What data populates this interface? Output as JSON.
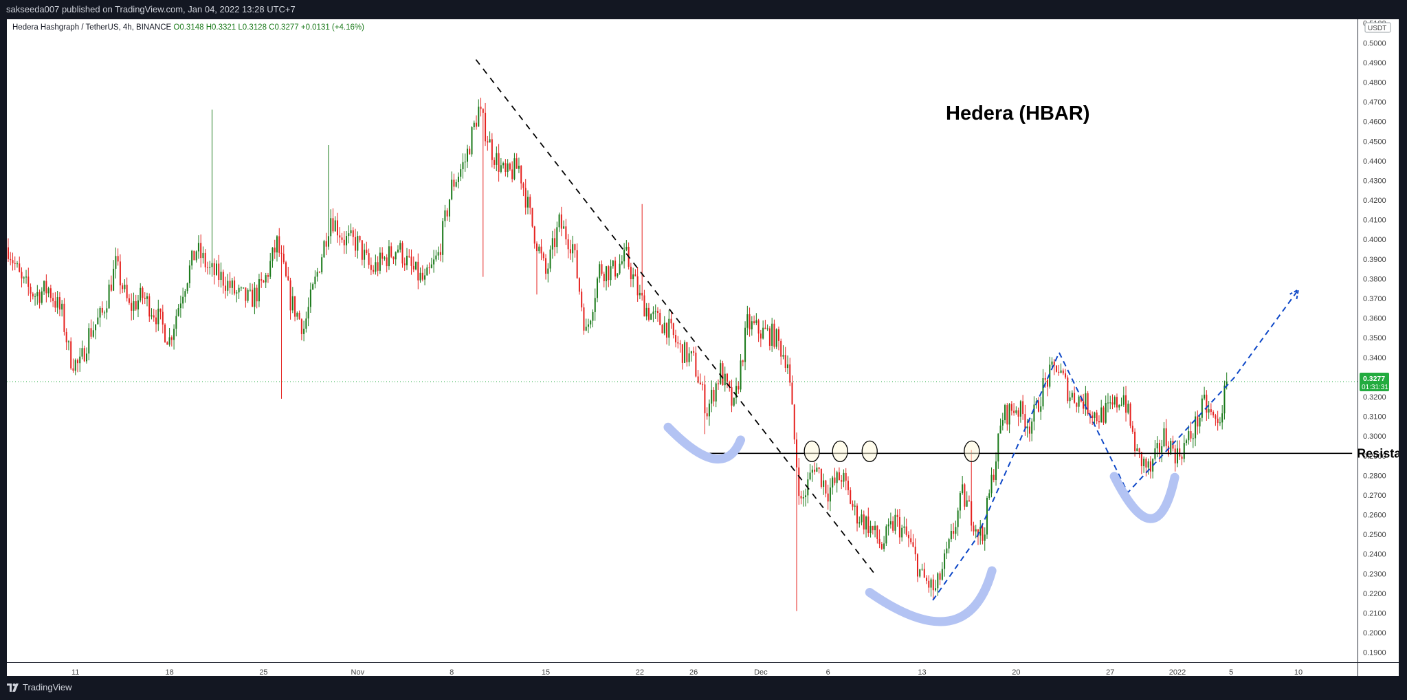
{
  "publish_line": "sakseeda007 published on TradingView.com, Jan 04, 2022 13:28 UTC+7",
  "footer": {
    "brand": "TradingView",
    "logo_icon": "tradingview-logo-icon"
  },
  "colors": {
    "up": "#1b7a1b",
    "down": "#e5221f",
    "annotation": "#b3c3f3",
    "trend_dashed": "#0d47c7",
    "price_tag": "#22ab3f",
    "price_line": "#22ab3f"
  },
  "chart_data": {
    "type": "candlestick",
    "symbol_header": {
      "name": "Hedera Hashgraph / TetherUS, 4h, BINANCE",
      "open": "O0.3148",
      "high": "H0.3321",
      "low": "L0.3128",
      "close": "C0.3277",
      "change": "+0.0131 (+4.16%)"
    },
    "title": "Hedera (HBAR)",
    "annotation_label": "Resista",
    "y_axis": {
      "unit": "USDT",
      "ticks": [
        "0.5100",
        "0.5000",
        "0.4900",
        "0.4800",
        "0.4700",
        "0.4600",
        "0.4500",
        "0.4400",
        "0.4300",
        "0.4200",
        "0.4100",
        "0.4000",
        "0.3900",
        "0.3800",
        "0.3700",
        "0.3600",
        "0.3500",
        "0.3400",
        "0.3300",
        "0.3200",
        "0.3100",
        "0.3000",
        "0.2900",
        "0.2800",
        "0.2700",
        "0.2600",
        "0.2500",
        "0.2400",
        "0.2300",
        "0.2200",
        "0.2100",
        "0.2000",
        "0.1900"
      ],
      "range": [
        0.185,
        0.512
      ]
    },
    "x_axis": {
      "ticks": [
        {
          "label": "11",
          "day": 11
        },
        {
          "label": "18",
          "day": 18
        },
        {
          "label": "25",
          "day": 25
        },
        {
          "label": "Nov",
          "day": 32
        },
        {
          "label": "8",
          "day": 39
        },
        {
          "label": "15",
          "day": 46
        },
        {
          "label": "22",
          "day": 53
        },
        {
          "label": "26",
          "day": 57
        },
        {
          "label": "Dec",
          "day": 62
        },
        {
          "label": "6",
          "day": 67
        },
        {
          "label": "13",
          "day": 74
        },
        {
          "label": "20",
          "day": 81
        },
        {
          "label": "27",
          "day": 88
        },
        {
          "label": "2022",
          "day": 93
        },
        {
          "label": "5",
          "day": 97
        },
        {
          "label": "10",
          "day": 102
        }
      ],
      "domain": [
        5.9,
        106.4
      ]
    },
    "last_price": "0.3277",
    "countdown": "01:31:31",
    "path": [
      [
        6,
        0.396
      ],
      [
        7,
        0.378
      ],
      [
        8,
        0.372
      ],
      [
        9,
        0.375
      ],
      [
        10,
        0.362
      ],
      [
        10.6,
        0.34
      ],
      [
        11.3,
        0.335
      ],
      [
        12,
        0.352
      ],
      [
        13,
        0.362
      ],
      [
        14,
        0.387
      ],
      [
        15,
        0.365
      ],
      [
        16,
        0.371
      ],
      [
        17,
        0.362
      ],
      [
        18,
        0.349
      ],
      [
        19,
        0.375
      ],
      [
        20,
        0.395
      ],
      [
        21,
        0.384
      ],
      [
        22,
        0.38
      ],
      [
        23,
        0.372
      ],
      [
        24,
        0.369
      ],
      [
        25,
        0.377
      ],
      [
        26,
        0.398
      ],
      [
        27,
        0.369
      ],
      [
        28,
        0.355
      ],
      [
        29,
        0.383
      ],
      [
        30,
        0.412
      ],
      [
        31,
        0.4
      ],
      [
        32,
        0.398
      ],
      [
        33,
        0.384
      ],
      [
        34,
        0.39
      ],
      [
        35,
        0.396
      ],
      [
        36,
        0.385
      ],
      [
        37,
        0.378
      ],
      [
        38,
        0.392
      ],
      [
        39,
        0.427
      ],
      [
        40,
        0.44
      ],
      [
        41,
        0.466
      ],
      [
        42,
        0.445
      ],
      [
        43,
        0.432
      ],
      [
        44,
        0.437
      ],
      [
        45,
        0.407
      ],
      [
        46,
        0.382
      ],
      [
        47,
        0.408
      ],
      [
        48,
        0.397
      ],
      [
        49,
        0.352
      ],
      [
        50,
        0.385
      ],
      [
        51,
        0.384
      ],
      [
        52,
        0.391
      ],
      [
        53,
        0.37
      ],
      [
        54,
        0.36
      ],
      [
        55,
        0.356
      ],
      [
        56,
        0.344
      ],
      [
        57,
        0.338
      ],
      [
        58,
        0.313
      ],
      [
        59,
        0.333
      ],
      [
        60,
        0.314
      ],
      [
        61,
        0.357
      ],
      [
        62,
        0.353
      ],
      [
        63,
        0.351
      ],
      [
        64,
        0.338
      ],
      [
        64.6,
        0.29
      ],
      [
        65,
        0.265
      ],
      [
        66,
        0.286
      ],
      [
        67,
        0.272
      ],
      [
        68,
        0.28
      ],
      [
        69,
        0.261
      ],
      [
        70,
        0.255
      ],
      [
        71,
        0.244
      ],
      [
        72,
        0.257
      ],
      [
        73,
        0.247
      ],
      [
        74,
        0.228
      ],
      [
        75,
        0.221
      ],
      [
        76,
        0.243
      ],
      [
        77,
        0.27
      ],
      [
        78,
        0.255
      ],
      [
        78.5,
        0.248
      ],
      [
        79,
        0.27
      ],
      [
        80,
        0.31
      ],
      [
        81,
        0.315
      ],
      [
        82,
        0.306
      ],
      [
        82.5,
        0.313
      ],
      [
        83,
        0.325
      ],
      [
        84,
        0.336
      ],
      [
        85,
        0.321
      ],
      [
        86,
        0.318
      ],
      [
        87,
        0.31
      ],
      [
        88,
        0.313
      ],
      [
        89,
        0.321
      ],
      [
        90,
        0.29
      ],
      [
        91,
        0.282
      ],
      [
        92,
        0.3
      ],
      [
        93,
        0.29
      ],
      [
        94,
        0.3
      ],
      [
        95,
        0.316
      ],
      [
        96,
        0.305
      ],
      [
        96.7,
        0.327
      ]
    ],
    "horizontal_lines": [
      {
        "kind": "resistance",
        "y": 0.2912,
        "x_from": 57.5,
        "x_to": 106.0
      },
      {
        "kind": "last_price",
        "y": 0.3277
      }
    ],
    "downtrend_line": {
      "from": [
        40.8,
        0.4915
      ],
      "to": [
        70.4,
        0.2305
      ]
    },
    "wave_path": [
      [
        74.8,
        0.2165
      ],
      [
        78,
        0.2475
      ],
      [
        84.2,
        0.3425
      ],
      [
        89.3,
        0.2712
      ],
      [
        97.2,
        0.3295
      ],
      [
        102,
        0.3745
      ]
    ],
    "resistance_marks": [
      65.8,
      67.9,
      70.1,
      77.7
    ],
    "bowl_marks": [
      {
        "from": [
          55.1,
          0.3045
        ],
        "via": [
          58.5,
          0.2885
        ],
        "to": [
          60.5,
          0.298
        ]
      },
      {
        "from": [
          70.1,
          0.2205
        ],
        "via": [
          76,
          0.206
        ],
        "to": [
          79.2,
          0.2315
        ]
      },
      {
        "from": [
          88.3,
          0.2795
        ],
        "via": [
          91,
          0.258
        ],
        "to": [
          92.8,
          0.279
        ]
      }
    ]
  }
}
